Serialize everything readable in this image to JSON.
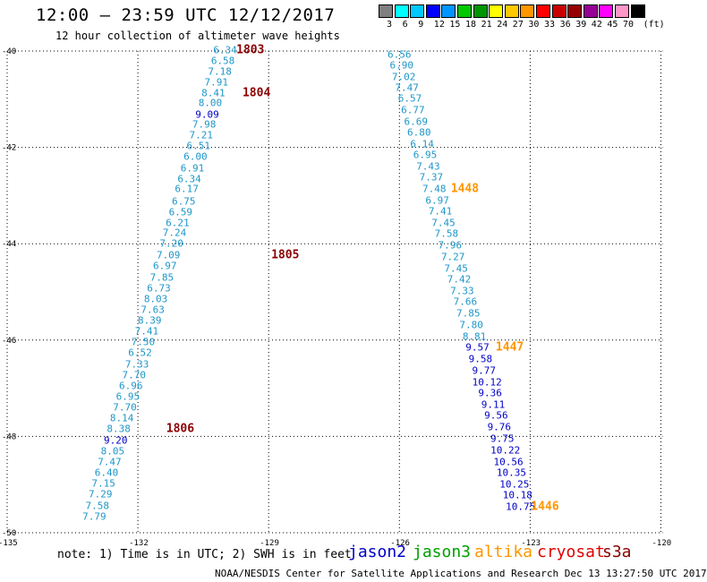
{
  "title": "12:00 – 23:59 UTC 12/12/2017",
  "subtitle": "12 hour collection of altimeter wave heights",
  "scale": {
    "colors": [
      "#808080",
      "#00ffff",
      "#00c8ff",
      "#0000ff",
      "#0096ff",
      "#00c800",
      "#009600",
      "#ffff00",
      "#ffc800",
      "#ff9600",
      "#ff0000",
      "#c80000",
      "#960000",
      "#960096",
      "#ff00ff",
      "#ff96c8",
      "#000000"
    ],
    "ticks": [
      "3",
      "6",
      "9",
      "12",
      "15",
      "18",
      "21",
      "24",
      "27",
      "30",
      "33",
      "36",
      "39",
      "42",
      "45",
      "70",
      "(ft)"
    ]
  },
  "axes": {
    "lat_ticks": [
      "-40",
      "-42",
      "-44",
      "-46",
      "-48",
      "-50"
    ],
    "lon_ticks": [
      "-135",
      "-132",
      "-129",
      "-126",
      "-123",
      "-120"
    ]
  },
  "tracks": [
    {
      "name": "track-west",
      "points": [
        {
          "lon": -130.0,
          "lat": -39.98,
          "value": "6.34",
          "color": "#1e96c8"
        },
        {
          "lon": -130.05,
          "lat": -40.2,
          "value": "6.58",
          "color": "#1e96c8"
        },
        {
          "lon": -130.12,
          "lat": -40.42,
          "value": "7.18",
          "color": "#1e96c8"
        },
        {
          "lon": -130.2,
          "lat": -40.65,
          "value": "7.91",
          "color": "#1e96c8"
        },
        {
          "lon": -130.27,
          "lat": -40.87,
          "value": "8.41",
          "color": "#1e96c8"
        },
        {
          "lon": -130.34,
          "lat": -41.08,
          "value": "8.00",
          "color": "#1e96c8"
        },
        {
          "lon": -130.41,
          "lat": -41.32,
          "value": "9.09",
          "color": "#0000c8"
        },
        {
          "lon": -130.48,
          "lat": -41.53,
          "value": "7.98",
          "color": "#1e96c8"
        },
        {
          "lon": -130.55,
          "lat": -41.75,
          "value": "7.21",
          "color": "#1e96c8"
        },
        {
          "lon": -130.61,
          "lat": -41.97,
          "value": "6.51",
          "color": "#1e96c8"
        },
        {
          "lon": -130.68,
          "lat": -42.2,
          "value": "6.00",
          "color": "#1e96c8"
        },
        {
          "lon": -130.75,
          "lat": -42.43,
          "value": "6.91",
          "color": "#1e96c8"
        },
        {
          "lon": -130.82,
          "lat": -42.65,
          "value": "6.34",
          "color": "#1e96c8"
        },
        {
          "lon": -130.88,
          "lat": -42.87,
          "value": "6.17",
          "color": "#1e96c8"
        },
        {
          "lon": -130.95,
          "lat": -43.12,
          "value": "6.75",
          "color": "#1e96c8"
        },
        {
          "lon": -131.02,
          "lat": -43.34,
          "value": "6.59",
          "color": "#1e96c8"
        },
        {
          "lon": -131.09,
          "lat": -43.56,
          "value": "6.21",
          "color": "#1e96c8"
        },
        {
          "lon": -131.16,
          "lat": -43.78,
          "value": "7.24",
          "color": "#1e96c8"
        },
        {
          "lon": -131.23,
          "lat": -44.0,
          "value": "7.20",
          "color": "#1e96c8"
        },
        {
          "lon": -131.3,
          "lat": -44.23,
          "value": "7.09",
          "color": "#1e96c8"
        },
        {
          "lon": -131.38,
          "lat": -44.46,
          "value": "6.97",
          "color": "#1e96c8"
        },
        {
          "lon": -131.45,
          "lat": -44.7,
          "value": "7.85",
          "color": "#1e96c8"
        },
        {
          "lon": -131.52,
          "lat": -44.92,
          "value": "6.73",
          "color": "#1e96c8"
        },
        {
          "lon": -131.59,
          "lat": -45.15,
          "value": "8.03",
          "color": "#1e96c8"
        },
        {
          "lon": -131.66,
          "lat": -45.37,
          "value": "7.63",
          "color": "#1e96c8"
        },
        {
          "lon": -131.73,
          "lat": -45.6,
          "value": "8.39",
          "color": "#1e96c8"
        },
        {
          "lon": -131.8,
          "lat": -45.82,
          "value": "7.41",
          "color": "#1e96c8"
        },
        {
          "lon": -131.88,
          "lat": -46.05,
          "value": "7.50",
          "color": "#1e96c8"
        },
        {
          "lon": -131.95,
          "lat": -46.27,
          "value": "6.52",
          "color": "#1e96c8"
        },
        {
          "lon": -132.02,
          "lat": -46.5,
          "value": "7.33",
          "color": "#1e96c8"
        },
        {
          "lon": -132.09,
          "lat": -46.73,
          "value": "7.70",
          "color": "#1e96c8"
        },
        {
          "lon": -132.16,
          "lat": -46.95,
          "value": "6.96",
          "color": "#1e96c8"
        },
        {
          "lon": -132.23,
          "lat": -47.18,
          "value": "6.95",
          "color": "#1e96c8"
        },
        {
          "lon": -132.3,
          "lat": -47.4,
          "value": "7.70",
          "color": "#1e96c8"
        },
        {
          "lon": -132.37,
          "lat": -47.63,
          "value": "8.14",
          "color": "#1e96c8"
        },
        {
          "lon": -132.44,
          "lat": -47.85,
          "value": "8.38",
          "color": "#1e96c8"
        },
        {
          "lon": -132.51,
          "lat": -48.08,
          "value": "9.20",
          "color": "#0000c8"
        },
        {
          "lon": -132.58,
          "lat": -48.3,
          "value": "8.05",
          "color": "#1e96c8"
        },
        {
          "lon": -132.65,
          "lat": -48.53,
          "value": "7.47",
          "color": "#1e96c8"
        },
        {
          "lon": -132.72,
          "lat": -48.75,
          "value": "6.40",
          "color": "#1e96c8"
        },
        {
          "lon": -132.79,
          "lat": -48.98,
          "value": "7.15",
          "color": "#1e96c8"
        },
        {
          "lon": -132.86,
          "lat": -49.21,
          "value": "7.29",
          "color": "#1e96c8"
        },
        {
          "lon": -132.93,
          "lat": -49.44,
          "value": "7.58",
          "color": "#1e96c8"
        },
        {
          "lon": -133.0,
          "lat": -49.67,
          "value": "7.79",
          "color": "#1e96c8"
        }
      ],
      "times": [
        {
          "lon": -129.74,
          "lat": -39.98,
          "label": "1803",
          "color": "#8b0000"
        },
        {
          "lon": -129.6,
          "lat": -40.87,
          "label": "1804",
          "color": "#8b0000"
        },
        {
          "lon": -128.94,
          "lat": -44.23,
          "label": "1805",
          "color": "#8b0000"
        },
        {
          "lon": -131.35,
          "lat": -47.85,
          "label": "1806",
          "color": "#8b0000"
        }
      ]
    },
    {
      "name": "track-east",
      "points": [
        {
          "lon": -126.0,
          "lat": -40.08,
          "value": "6.56",
          "color": "#1e96c8"
        },
        {
          "lon": -125.95,
          "lat": -40.3,
          "value": "6.90",
          "color": "#1e96c8"
        },
        {
          "lon": -125.9,
          "lat": -40.53,
          "value": "7.02",
          "color": "#1e96c8"
        },
        {
          "lon": -125.83,
          "lat": -40.76,
          "value": "7.47",
          "color": "#1e96c8"
        },
        {
          "lon": -125.76,
          "lat": -40.98,
          "value": "6.57",
          "color": "#1e96c8"
        },
        {
          "lon": -125.69,
          "lat": -41.22,
          "value": "6.77",
          "color": "#1e96c8"
        },
        {
          "lon": -125.62,
          "lat": -41.46,
          "value": "6.69",
          "color": "#1e96c8"
        },
        {
          "lon": -125.55,
          "lat": -41.7,
          "value": "6.80",
          "color": "#1e96c8"
        },
        {
          "lon": -125.48,
          "lat": -41.93,
          "value": "6.14",
          "color": "#1e96c8"
        },
        {
          "lon": -125.41,
          "lat": -42.15,
          "value": "6.95",
          "color": "#1e96c8"
        },
        {
          "lon": -125.34,
          "lat": -42.39,
          "value": "7.43",
          "color": "#1e96c8"
        },
        {
          "lon": -125.27,
          "lat": -42.63,
          "value": "7.37",
          "color": "#1e96c8"
        },
        {
          "lon": -125.2,
          "lat": -42.86,
          "value": "7.48",
          "color": "#1e96c8"
        },
        {
          "lon": -125.13,
          "lat": -43.1,
          "value": "6.97",
          "color": "#1e96c8"
        },
        {
          "lon": -125.06,
          "lat": -43.33,
          "value": "7.41",
          "color": "#1e96c8"
        },
        {
          "lon": -124.99,
          "lat": -43.56,
          "value": "7.45",
          "color": "#1e96c8"
        },
        {
          "lon": -124.92,
          "lat": -43.8,
          "value": "7.58",
          "color": "#1e96c8"
        },
        {
          "lon": -124.84,
          "lat": -44.03,
          "value": "7.96",
          "color": "#1e96c8"
        },
        {
          "lon": -124.77,
          "lat": -44.27,
          "value": "7.27",
          "color": "#1e96c8"
        },
        {
          "lon": -124.7,
          "lat": -44.51,
          "value": "7.45",
          "color": "#1e96c8"
        },
        {
          "lon": -124.63,
          "lat": -44.74,
          "value": "7.42",
          "color": "#1e96c8"
        },
        {
          "lon": -124.56,
          "lat": -44.98,
          "value": "7.33",
          "color": "#1e96c8"
        },
        {
          "lon": -124.49,
          "lat": -45.21,
          "value": "7.66",
          "color": "#1e96c8"
        },
        {
          "lon": -124.42,
          "lat": -45.45,
          "value": "7.85",
          "color": "#1e96c8"
        },
        {
          "lon": -124.35,
          "lat": -45.69,
          "value": "7.80",
          "color": "#1e96c8"
        },
        {
          "lon": -124.28,
          "lat": -45.93,
          "value": "8.81",
          "color": "#1e96c8"
        },
        {
          "lon": -124.21,
          "lat": -46.16,
          "value": "9.57",
          "color": "#0000c8"
        },
        {
          "lon": -124.14,
          "lat": -46.4,
          "value": "9.58",
          "color": "#0000c8"
        },
        {
          "lon": -124.06,
          "lat": -46.64,
          "value": "9.77",
          "color": "#0000c8"
        },
        {
          "lon": -123.99,
          "lat": -46.87,
          "value": "10.12",
          "color": "#0000c8"
        },
        {
          "lon": -123.92,
          "lat": -47.1,
          "value": "9.36",
          "color": "#0000c8"
        },
        {
          "lon": -123.85,
          "lat": -47.34,
          "value": "9.11",
          "color": "#0000c8"
        },
        {
          "lon": -123.78,
          "lat": -47.57,
          "value": "9.56",
          "color": "#0000c8"
        },
        {
          "lon": -123.71,
          "lat": -47.81,
          "value": "9.76",
          "color": "#0000c8"
        },
        {
          "lon": -123.64,
          "lat": -48.05,
          "value": "9.75",
          "color": "#0000c8"
        },
        {
          "lon": -123.57,
          "lat": -48.29,
          "value": "10.22",
          "color": "#0000c8"
        },
        {
          "lon": -123.5,
          "lat": -48.53,
          "value": "10.56",
          "color": "#0000c8"
        },
        {
          "lon": -123.43,
          "lat": -48.76,
          "value": "10.35",
          "color": "#0000c8"
        },
        {
          "lon": -123.36,
          "lat": -48.99,
          "value": "10.25",
          "color": "#0000c8"
        },
        {
          "lon": -123.29,
          "lat": -49.22,
          "value": "10.18",
          "color": "#0000c8"
        },
        {
          "lon": -123.22,
          "lat": -49.46,
          "value": "10.75",
          "color": "#0000c8"
        }
      ],
      "times": [
        {
          "lon": -124.82,
          "lat": -42.86,
          "label": "1448",
          "color": "#ff9600"
        },
        {
          "lon": -123.79,
          "lat": -46.16,
          "label": "1447",
          "color": "#ff9600"
        },
        {
          "lon": -122.98,
          "lat": -49.46,
          "label": "1446",
          "color": "#ff9600"
        }
      ]
    }
  ],
  "note": "note: 1) Time is in UTC; 2) SWH is in feet",
  "legend": [
    {
      "label": "jason2",
      "color": "#0000c8"
    },
    {
      "label": "jason3",
      "color": "#00a000"
    },
    {
      "label": "altika",
      "color": "#ff9600"
    },
    {
      "label": "cryosat",
      "color": "#e00000"
    },
    {
      "label": "s3a",
      "color": "#8b0000"
    }
  ],
  "footer": "NOAA/NESDIS Center for Satellite Applications and Research    Dec 13 13:27:50 UTC 2017"
}
